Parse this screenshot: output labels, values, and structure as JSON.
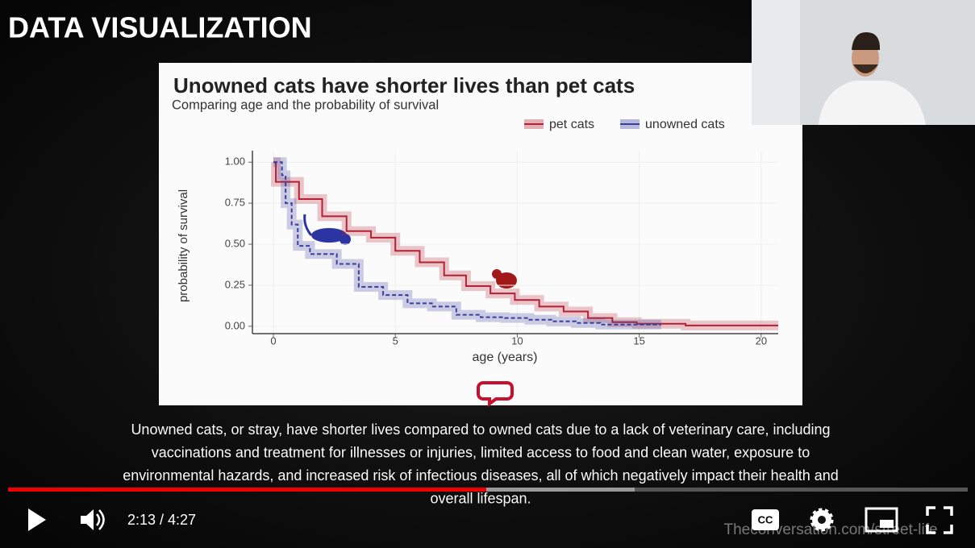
{
  "slide_title": "DATA VISUALIZATION",
  "chart_data": {
    "type": "line",
    "step": "post",
    "title": "Unowned cats have shorter lives than pet cats",
    "subtitle": "Comparing  age and the probability of survival",
    "x_label": "age (years)",
    "y_label": "probability of survival",
    "xlim": [
      -0.86,
      20.7
    ],
    "ylim": [
      -0.045,
      1.07
    ],
    "xticks": [
      0,
      5,
      10,
      15,
      20
    ],
    "yticks": [
      {
        "value": 0,
        "label": "0.00"
      },
      {
        "value": 0.25,
        "label": "0.25"
      },
      {
        "value": 0.5,
        "label": "0.50"
      },
      {
        "value": 0.75,
        "label": "0.75"
      },
      {
        "value": 1,
        "label": "1.00"
      }
    ],
    "grid": true,
    "legend": "top-right",
    "series": [
      {
        "name": "pet cats",
        "color": "#b22234",
        "x": [
          0,
          0.1,
          1.05,
          2.0,
          3.0,
          4.0,
          5.0,
          6.0,
          7.0,
          7.9,
          8.9,
          9.9,
          10.9,
          11.9,
          12.9,
          13.9,
          14.9,
          16.9,
          20.7
        ],
        "values": [
          1.0,
          0.88,
          0.775,
          0.67,
          0.58,
          0.54,
          0.46,
          0.39,
          0.31,
          0.245,
          0.2,
          0.16,
          0.12,
          0.09,
          0.05,
          0.025,
          0.015,
          0.005,
          0.005
        ]
      },
      {
        "name": "unowned cats",
        "color": "#3a3f9e",
        "x": [
          0,
          0.35,
          0.5,
          0.75,
          1.0,
          1.5,
          2.6,
          3.5,
          4.5,
          5.5,
          6.5,
          7.5,
          8.5,
          9.5,
          10.5,
          11.4,
          12.4,
          13.4,
          15.9
        ],
        "values": [
          1.0,
          0.92,
          0.75,
          0.62,
          0.49,
          0.44,
          0.38,
          0.24,
          0.19,
          0.14,
          0.12,
          0.07,
          0.055,
          0.05,
          0.04,
          0.03,
          0.02,
          0.01,
          0.01
        ]
      }
    ]
  },
  "caption": [
    "Unowned cats, or stray, have shorter lives compared to owned cats due to a lack of veterinary care, including",
    "vaccinations and treatment for illnesses or injuries, limited access to food and clean water, exposure to",
    "environmental hazards, and increased risk of infectious diseases, all of which negatively impact their health and",
    "overall lifespan."
  ],
  "watermark": "Theconversation.com/street-life",
  "player": {
    "time": "2:13 / 4:27"
  }
}
